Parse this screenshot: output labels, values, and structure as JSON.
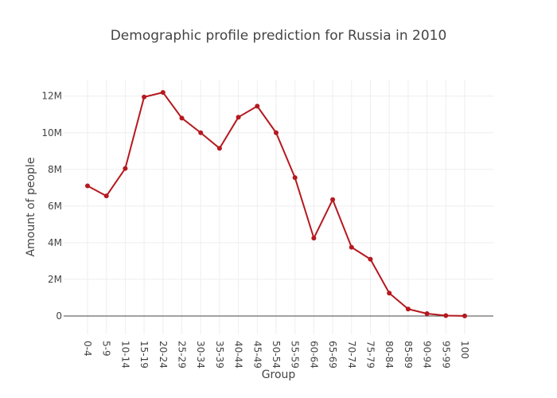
{
  "chart_data": {
    "type": "line",
    "title": "Demographic profile prediction for Russia in 2010",
    "xlabel": "Group",
    "ylabel": "Amount of people",
    "categories": [
      "0-4",
      "5-9",
      "10-14",
      "15-19",
      "20-24",
      "25-29",
      "30-34",
      "35-39",
      "40-44",
      "45-49",
      "50-54",
      "55-59",
      "60-64",
      "65-69",
      "70-74",
      "75-79",
      "80-84",
      "85-89",
      "90-94",
      "95-99",
      "100"
    ],
    "series": [
      {
        "values": [
          7100000,
          6550000,
          8050000,
          11950000,
          12200000,
          10800000,
          10000000,
          9150000,
          10850000,
          11450000,
          10000000,
          7550000,
          4250000,
          6350000,
          3750000,
          3100000,
          1250000,
          380000,
          130000,
          20000,
          5000
        ]
      }
    ],
    "yticks": [
      0,
      2000000,
      4000000,
      6000000,
      8000000,
      10000000,
      12000000
    ],
    "ytick_labels": [
      "0",
      "2M",
      "4M",
      "6M",
      "8M",
      "10M",
      "12M"
    ],
    "ylim": [
      -1000000,
      12900000
    ],
    "grid": true,
    "colors": {
      "line": "#b5191f",
      "marker": "#b5191f"
    }
  }
}
